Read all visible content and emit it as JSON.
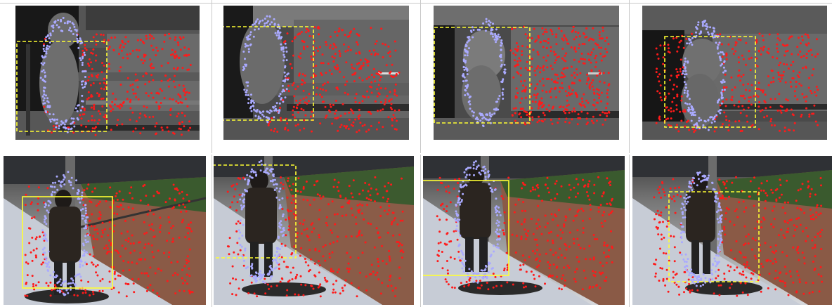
{
  "figure": {
    "columns": 4,
    "rows": [
      "disparity-map",
      "camera-image"
    ],
    "colors": {
      "background_point": "#ff1a1a",
      "person_point": "#aaaaff",
      "bounding_box": "#ffff33",
      "disparity_dark": "#151515",
      "disparity_mid": "#6e6e6e",
      "disparity_light": "#9a9a9a"
    }
  }
}
